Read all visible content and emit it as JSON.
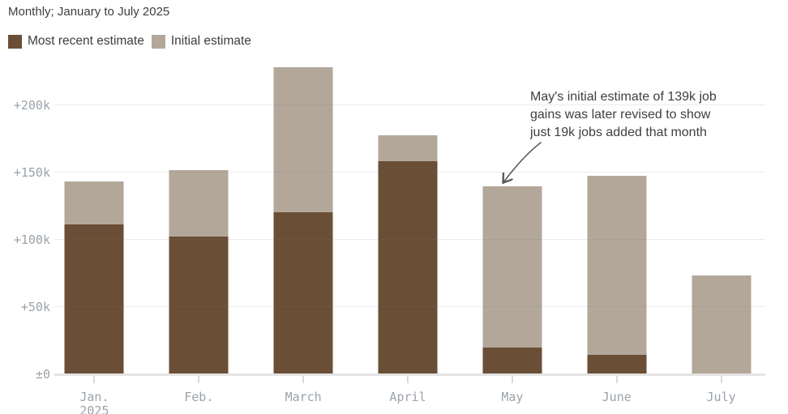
{
  "header": {
    "title": "Monthly; January to July 2025"
  },
  "legend": {
    "items": [
      {
        "label": "Most recent estimate",
        "color": "#6a4e36"
      },
      {
        "label": "Initial estimate",
        "color": "#b3a79a"
      }
    ]
  },
  "annotation": {
    "lines": [
      "May's initial estimate of 139k job",
      "gains was later revised to show",
      "just 19k jobs added that month"
    ]
  },
  "chart_data": {
    "type": "bar",
    "subtype": "overlaid-columns",
    "title": "Monthly; January to July 2025",
    "categories": [
      "Jan. 2025",
      "Feb.",
      "March",
      "April",
      "May",
      "June",
      "July"
    ],
    "category_label_lines": [
      [
        "Jan.",
        "2025"
      ],
      [
        "Feb."
      ],
      [
        "March"
      ],
      [
        "April"
      ],
      [
        "May"
      ],
      [
        "June"
      ],
      [
        "July"
      ]
    ],
    "value_unit": "thousands of jobs (k)",
    "series": [
      {
        "name": "Most recent estimate",
        "color": "#6a4e36",
        "values": [
          111,
          102,
          120,
          158,
          19,
          14,
          null
        ]
      },
      {
        "name": "Initial estimate",
        "color": "#b3a79a",
        "values": [
          143,
          151,
          228,
          177,
          139,
          147,
          73
        ]
      }
    ],
    "y_axis": {
      "ticks": [
        {
          "value": 0,
          "label": "±0"
        },
        {
          "value": 50,
          "label": "+50k"
        },
        {
          "value": 100,
          "label": "+100k"
        },
        {
          "value": 150,
          "label": "+150k"
        },
        {
          "value": 200,
          "label": "+200k"
        }
      ],
      "ylim": [
        0,
        233
      ],
      "grid": true
    },
    "legend_position": "top-left",
    "annotation": "May's initial estimate of 139k job gains was later revised to show just 19k jobs added that month"
  }
}
